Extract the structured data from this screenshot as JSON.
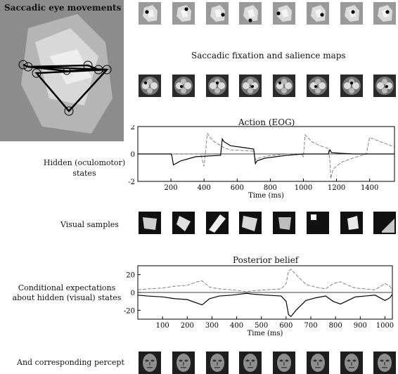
{
  "saccade_panel": {
    "title": "Saccadic eye movements"
  },
  "fixation_row_count": 8,
  "salience": {
    "title": "Saccadic fixation and salience maps"
  },
  "action": {
    "title": "Action (EOG)"
  },
  "hidden_states": {
    "label_line1": "Hidden (oculomotor)",
    "label_line2": "states"
  },
  "visual_samples": {
    "label": "Visual samples"
  },
  "posterior": {
    "title": "Posterior belief"
  },
  "conditional": {
    "label_line1": "Conditional expectations",
    "label_line2": "about hidden (visual) states"
  },
  "percept": {
    "label": "And corresponding percept"
  },
  "chart_data": [
    {
      "type": "line",
      "title": "Action (EOG)",
      "xlabel": "Time (ms)",
      "ylabel": "",
      "xlim": [
        0,
        1550
      ],
      "ylim": [
        -2,
        2
      ],
      "x_ticks": [
        "200",
        "400",
        "600",
        "800",
        "1000",
        "1200",
        "1400"
      ],
      "y_ticks": [
        "2",
        "0",
        "-2"
      ],
      "series": [
        {
          "x": [
            0,
            380,
            400,
            420,
            450,
            500,
            530,
            560,
            700,
            710,
            730,
            780,
            900,
            990,
            1000,
            1010,
            1050,
            1100,
            1150,
            1160,
            1165,
            1180,
            1230,
            1300,
            1380,
            1400,
            1550
          ],
          "y": [
            0,
            0,
            -0.9,
            1.5,
            1.0,
            0.6,
            0.4,
            0.3,
            0.2,
            -0.4,
            -0.3,
            -0.15,
            0,
            0,
            -0.2,
            1.4,
            0.9,
            0.6,
            0.4,
            -0.5,
            -1.8,
            -1.1,
            -0.6,
            -0.3,
            0,
            1.2,
            0.5
          ]
        },
        {
          "x": [
            0,
            200,
            205,
            215,
            260,
            350,
            500,
            510,
            520,
            560,
            650,
            700,
            710,
            720,
            770,
            900,
            1000,
            1150,
            1160,
            1170,
            1220,
            1300,
            1380,
            1550
          ],
          "y": [
            0,
            0,
            -0.1,
            -0.8,
            -0.5,
            -0.2,
            -0.1,
            1.1,
            0.9,
            0.6,
            0.45,
            0.35,
            -0.7,
            -0.5,
            -0.3,
            -0.1,
            0,
            0,
            0.3,
            0.1,
            0.05,
            0,
            0,
            0
          ]
        }
      ]
    },
    {
      "type": "area",
      "title": "Posterior belief",
      "xlabel": "Time (ms)",
      "ylabel": "",
      "xlim": [
        0,
        1030
      ],
      "ylim": [
        -30,
        30
      ],
      "x_ticks": [
        "100",
        "200",
        "300",
        "400",
        "500",
        "600",
        "700",
        "800",
        "900",
        "1000"
      ],
      "y_ticks": [
        "20",
        "0",
        "-20"
      ],
      "series": [
        {
          "name": "upper",
          "x": [
            0,
            40,
            100,
            150,
            200,
            240,
            260,
            290,
            330,
            380,
            410,
            440,
            470,
            520,
            580,
            600,
            610,
            620,
            640,
            680,
            720,
            760,
            790,
            820,
            850,
            880,
            920,
            960,
            1000,
            1020,
            1030
          ],
          "y": [
            3,
            4,
            5,
            7,
            8,
            12,
            13,
            6,
            4,
            3,
            2,
            1,
            2,
            3,
            4,
            10,
            24,
            26,
            20,
            9,
            6,
            4,
            10,
            12,
            8,
            5,
            4,
            3,
            10,
            7,
            2
          ]
        },
        {
          "name": "lower",
          "x": [
            0,
            40,
            100,
            150,
            200,
            240,
            260,
            290,
            330,
            380,
            410,
            440,
            470,
            520,
            580,
            600,
            610,
            620,
            640,
            680,
            720,
            760,
            790,
            820,
            850,
            880,
            920,
            960,
            1000,
            1020,
            1030
          ],
          "y": [
            -3,
            -4,
            -5,
            -7,
            -8,
            -12,
            -14,
            -7,
            -4,
            -3,
            -2,
            -1,
            -2,
            -3,
            -4,
            -10,
            -25,
            -27,
            -20,
            -9,
            -6,
            -4,
            -10,
            -13,
            -9,
            -5,
            -4,
            -3,
            -9,
            -6,
            -2
          ]
        }
      ]
    }
  ]
}
